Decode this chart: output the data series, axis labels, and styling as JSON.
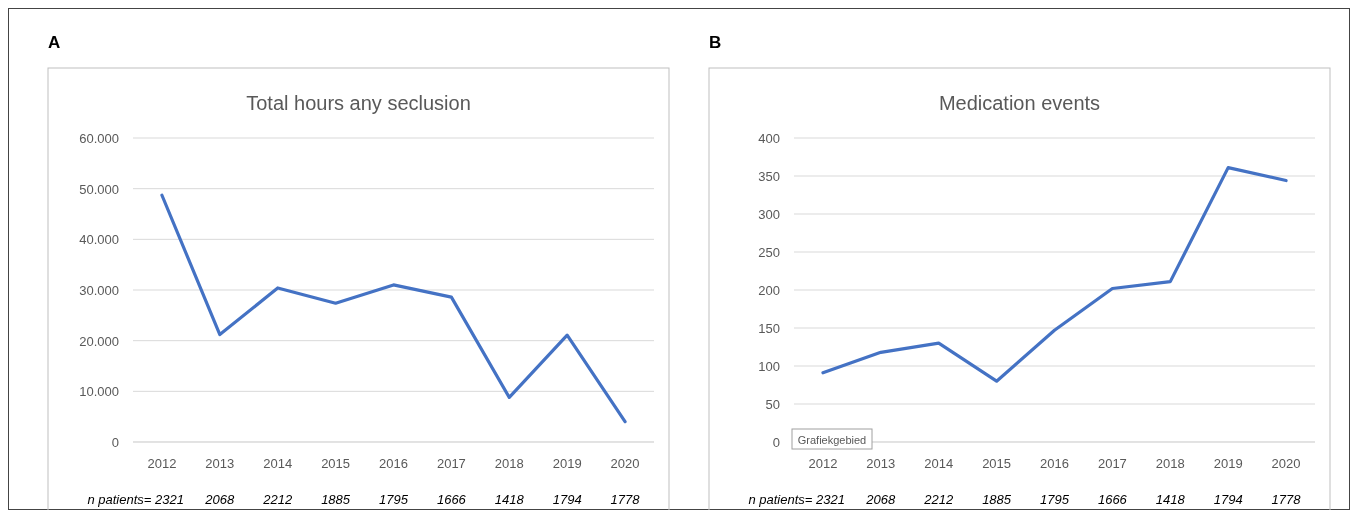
{
  "chart_data": [
    {
      "type": "line",
      "title": "Total hours any seclusion",
      "categories": [
        "2012",
        "2013",
        "2014",
        "2015",
        "2016",
        "2017",
        "2018",
        "2019",
        "2020"
      ],
      "series": [
        {
          "color": "#4472c4",
          "values": [
            48700,
            21200,
            30400,
            27400,
            31000,
            28600,
            8800,
            21100,
            4000
          ]
        }
      ],
      "ylim": [
        0,
        60000
      ],
      "yticks": [
        0,
        {
          "value": 10000,
          "label": "10.000"
        },
        {
          "value": 20000,
          "label": "20.000"
        },
        {
          "value": 30000,
          "label": "30.000"
        },
        {
          "value": 40000,
          "label": "40.000"
        },
        {
          "value": 50000,
          "label": "50.000"
        },
        {
          "value": 60000,
          "label": "60.000"
        }
      ],
      "grid": "y",
      "marker": "none",
      "line_style": "solid",
      "annotations": [
        "A",
        "n patients= 2321",
        "2068",
        "2212",
        "1885",
        "1795",
        "1666",
        "1418",
        "1794",
        "1778"
      ]
    },
    {
      "type": "line",
      "title": "Medication events",
      "categories": [
        "2012",
        "2013",
        "2014",
        "2015",
        "2016",
        "2017",
        "2018",
        "2019",
        "2020"
      ],
      "series": [
        {
          "color": "#4472c4",
          "values": [
            91,
            118,
            130,
            80,
            147,
            202,
            211,
            361,
            344
          ]
        }
      ],
      "ylim": [
        0,
        400
      ],
      "yticks": [
        0,
        50,
        100,
        150,
        200,
        250,
        300,
        350,
        400
      ],
      "grid": "y",
      "marker": "none",
      "line_style": "solid",
      "annotations": [
        "B",
        "n patients= 2321",
        "2068",
        "2212",
        "1885",
        "1795",
        "1666",
        "1418",
        "1794",
        "1778",
        "Grafiekgebied"
      ]
    }
  ]
}
